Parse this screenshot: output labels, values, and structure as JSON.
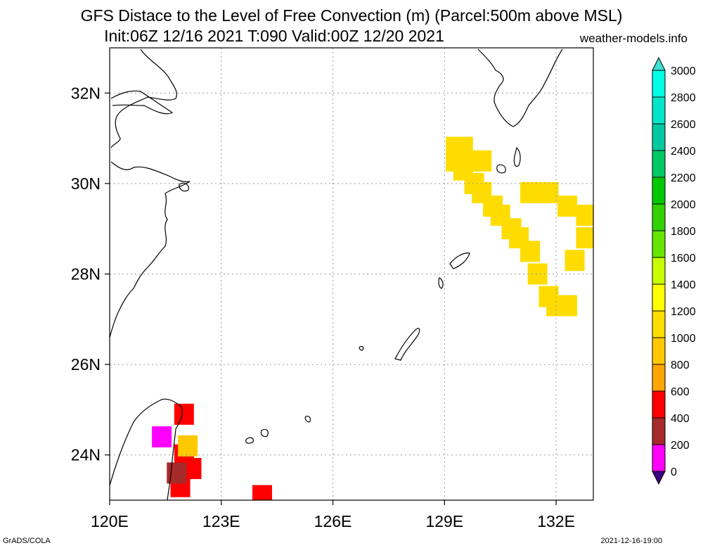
{
  "title_line1": "GFS Distace to the Level of Free Convection (m) (Parcel:500m above MSL)",
  "title_line2": "Init:06Z 12/16 2021 T:090 Valid:00Z 12/20 2021",
  "site": "weather-models.info",
  "footer_left": "GrADS/COLA",
  "footer_right": "2021-12-16-19:00",
  "map": {
    "lon_range": [
      120,
      133
    ],
    "lat_range": [
      23,
      33
    ],
    "lon_ticks": [
      {
        "value": 120,
        "label": "120E"
      },
      {
        "value": 123,
        "label": "123E"
      },
      {
        "value": 126,
        "label": "126E"
      },
      {
        "value": 129,
        "label": "129E"
      },
      {
        "value": 132,
        "label": "132E"
      }
    ],
    "lat_ticks": [
      {
        "value": 24,
        "label": "24N"
      },
      {
        "value": 26,
        "label": "26N"
      },
      {
        "value": 28,
        "label": "28N"
      },
      {
        "value": 30,
        "label": "30N"
      },
      {
        "value": 32,
        "label": "32N"
      }
    ],
    "grid": true
  },
  "colorbar": {
    "levels": [
      0,
      200,
      400,
      600,
      800,
      1000,
      1200,
      1400,
      1600,
      1800,
      2000,
      2200,
      2400,
      2600,
      2800,
      3000
    ],
    "colors": [
      "#3c0080",
      "#ff00ff",
      "#a52a2a",
      "#ff0000",
      "#ffa500",
      "#ffc800",
      "#ffdc00",
      "#ffff00",
      "#c8ff00",
      "#64e600",
      "#32d200",
      "#00c800",
      "#00c864",
      "#00c8a0",
      "#00e6c8",
      "#00ffe6",
      "#40e0d0"
    ]
  },
  "shaded_cells": [
    {
      "lon": 129.3,
      "lat": 30.8,
      "value": 1000
    },
    {
      "lon": 129.5,
      "lat": 30.8,
      "value": 1000
    },
    {
      "lon": 129.3,
      "lat": 30.5,
      "value": 1000
    },
    {
      "lon": 129.8,
      "lat": 30.5,
      "value": 1000
    },
    {
      "lon": 130.0,
      "lat": 30.5,
      "value": 1000
    },
    {
      "lon": 129.5,
      "lat": 30.3,
      "value": 1000
    },
    {
      "lon": 129.8,
      "lat": 30.0,
      "value": 1000
    },
    {
      "lon": 130.0,
      "lat": 29.8,
      "value": 1000
    },
    {
      "lon": 130.3,
      "lat": 29.5,
      "value": 1000
    },
    {
      "lon": 130.5,
      "lat": 29.3,
      "value": 1000
    },
    {
      "lon": 130.8,
      "lat": 29.0,
      "value": 1000
    },
    {
      "lon": 131.0,
      "lat": 28.8,
      "value": 1000
    },
    {
      "lon": 131.3,
      "lat": 28.5,
      "value": 1000
    },
    {
      "lon": 131.5,
      "lat": 28.0,
      "value": 1000
    },
    {
      "lon": 131.8,
      "lat": 27.5,
      "value": 1000
    },
    {
      "lon": 132.0,
      "lat": 27.3,
      "value": 1000
    },
    {
      "lon": 132.3,
      "lat": 27.3,
      "value": 1000
    },
    {
      "lon": 132.5,
      "lat": 28.3,
      "value": 1000
    },
    {
      "lon": 132.8,
      "lat": 28.8,
      "value": 1000
    },
    {
      "lon": 131.3,
      "lat": 29.8,
      "value": 1000
    },
    {
      "lon": 131.8,
      "lat": 29.8,
      "value": 1000
    },
    {
      "lon": 132.3,
      "lat": 29.5,
      "value": 1000
    },
    {
      "lon": 132.8,
      "lat": 29.3,
      "value": 1000
    },
    {
      "lon": 122.0,
      "lat": 24.9,
      "value": 500
    },
    {
      "lon": 122.0,
      "lat": 24.0,
      "value": 500
    },
    {
      "lon": 122.2,
      "lat": 23.7,
      "value": 500
    },
    {
      "lon": 121.9,
      "lat": 23.3,
      "value": 500
    },
    {
      "lon": 124.1,
      "lat": 23.1,
      "value": 500
    },
    {
      "lon": 121.4,
      "lat": 24.4,
      "value": 100
    },
    {
      "lon": 121.8,
      "lat": 23.6,
      "value": 300
    },
    {
      "lon": 122.1,
      "lat": 24.2,
      "value": 900
    }
  ]
}
